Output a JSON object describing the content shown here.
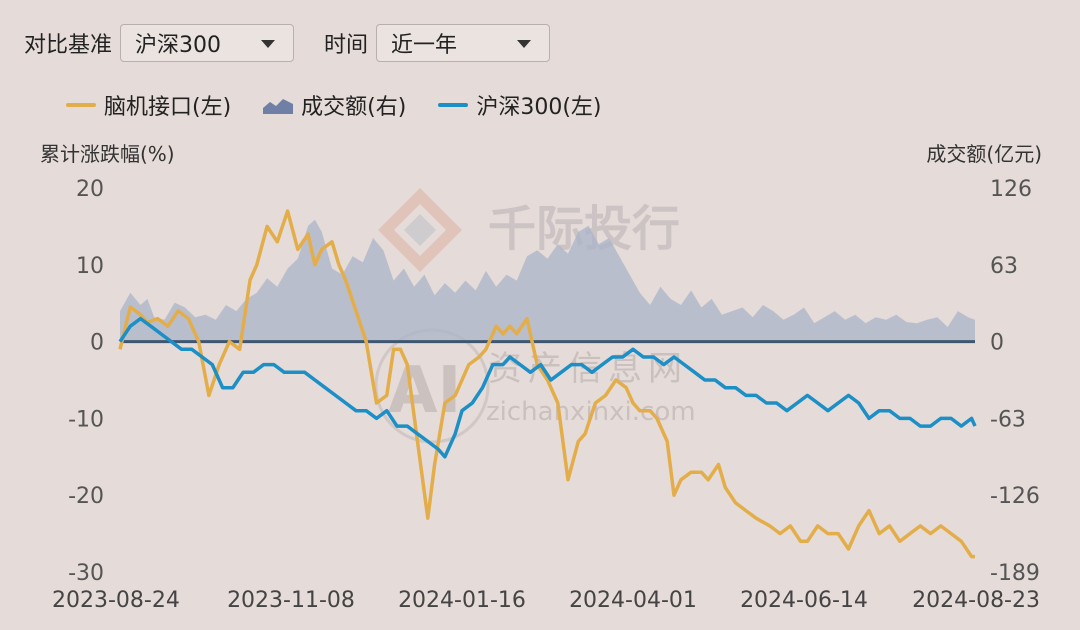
{
  "controls": {
    "base_label": "对比基准",
    "base_value": "沪深300",
    "time_label": "时间",
    "time_value": "近一年"
  },
  "watermark": {
    "brand": "千际投行",
    "site_cn": "资产信息网",
    "site_en": "zichanxinxi.com",
    "ai": "AI"
  },
  "colors": {
    "brain": "#e3ae4a",
    "hs300": "#1b8fc6",
    "volume": "#a9b4c9",
    "background": "#e5dbd8"
  },
  "chart_data": {
    "type": "line",
    "left_axis_title": "累计涨跌幅(%)",
    "right_axis_title": "成交额(亿元)",
    "y_left_ticks": [
      "20",
      "10",
      "0",
      "-10",
      "-20",
      "-30"
    ],
    "y_left_lim": [
      -30,
      20
    ],
    "y_right_ticks": [
      "126",
      "63",
      "0",
      "-63",
      "-126",
      "-189"
    ],
    "y_right_lim": [
      -189,
      126
    ],
    "x_ticks": [
      "2023-08-24",
      "2023-11-08",
      "2024-01-16",
      "2024-04-01",
      "2024-06-14",
      "2024-08-23"
    ],
    "x_index": [
      0,
      50,
      100,
      150,
      200,
      250
    ],
    "legend": [
      "脑机接口(左)",
      "成交额(右)",
      "沪深300(左)"
    ],
    "series": [
      {
        "name": "脑机接口(左)",
        "axis": "left",
        "kind": "line",
        "x": [
          0,
          3,
          6,
          8,
          11,
          14,
          17,
          20,
          23,
          26,
          29,
          32,
          35,
          38,
          40,
          43,
          46,
          49,
          52,
          55,
          57,
          59,
          62,
          64,
          66,
          69,
          72,
          75,
          78,
          80,
          82,
          84,
          87,
          90,
          92,
          95,
          98,
          100,
          102,
          105,
          107,
          110,
          112,
          114,
          116,
          119,
          122,
          125,
          128,
          131,
          134,
          136,
          139,
          142,
          145,
          148,
          150,
          152,
          155,
          157,
          160,
          162,
          164,
          167,
          170,
          172,
          175,
          177,
          180,
          183,
          186,
          190,
          193,
          196,
          199,
          201,
          204,
          207,
          210,
          213,
          216,
          219,
          222,
          225,
          228,
          231,
          234,
          237,
          240,
          243,
          246,
          249,
          250
        ],
        "y": [
          -1,
          4.5,
          3.5,
          2.5,
          3,
          2,
          4,
          3,
          0,
          -7,
          -3,
          0,
          -1,
          8,
          10,
          15,
          13,
          17,
          12,
          14,
          10,
          12,
          13,
          10,
          8,
          4,
          0,
          -8,
          -7,
          -1,
          -1,
          -3,
          -13,
          -23,
          -16,
          -8,
          -7,
          -5,
          -3,
          -2,
          -1,
          2,
          1,
          2,
          1,
          3,
          -3,
          -5,
          -8,
          -18,
          -13,
          -12,
          -8,
          -7,
          -5,
          -6,
          -8,
          -9,
          -9,
          -10,
          -13,
          -20,
          -18,
          -17,
          -17,
          -18,
          -16,
          -19,
          -21,
          -22,
          -23,
          -24,
          -25,
          -24,
          -26,
          -26,
          -24,
          -25,
          -25,
          -27,
          -24,
          -22,
          -25,
          -24,
          -26,
          -25,
          -24,
          -25,
          -24,
          -25,
          -26,
          -28,
          -28
        ]
      },
      {
        "name": "沪深300(左)",
        "axis": "left",
        "kind": "line",
        "x": [
          0,
          3,
          6,
          9,
          12,
          15,
          18,
          21,
          24,
          27,
          30,
          33,
          36,
          39,
          42,
          45,
          48,
          51,
          54,
          57,
          60,
          63,
          66,
          69,
          72,
          75,
          78,
          81,
          84,
          87,
          90,
          93,
          95,
          98,
          100,
          103,
          106,
          109,
          112,
          114,
          117,
          120,
          123,
          126,
          129,
          132,
          135,
          138,
          141,
          144,
          147,
          150,
          153,
          156,
          159,
          162,
          165,
          168,
          171,
          174,
          177,
          180,
          183,
          186,
          189,
          192,
          195,
          198,
          201,
          204,
          207,
          210,
          213,
          216,
          219,
          222,
          225,
          228,
          231,
          234,
          237,
          240,
          243,
          246,
          249,
          250
        ],
        "y": [
          0,
          2,
          3,
          2,
          1,
          0,
          -1,
          -1,
          -2,
          -3,
          -6,
          -6,
          -4,
          -4,
          -3,
          -3,
          -4,
          -4,
          -4,
          -5,
          -6,
          -7,
          -8,
          -9,
          -9,
          -10,
          -9,
          -11,
          -11,
          -12,
          -13,
          -14,
          -15,
          -12,
          -9,
          -8,
          -6,
          -3,
          -3,
          -2,
          -3,
          -4,
          -3,
          -5,
          -4,
          -3,
          -3,
          -4,
          -3,
          -2,
          -2,
          -1,
          -2,
          -2,
          -3,
          -2,
          -3,
          -4,
          -5,
          -5,
          -6,
          -6,
          -7,
          -7,
          -8,
          -8,
          -9,
          -8,
          -7,
          -8,
          -9,
          -8,
          -7,
          -8,
          -10,
          -9,
          -9,
          -10,
          -10,
          -11,
          -11,
          -10,
          -10,
          -11,
          -10,
          -11
        ]
      },
      {
        "name": "成交额(右)",
        "axis": "right",
        "kind": "area",
        "x": [
          0,
          3,
          6,
          8,
          10,
          13,
          16,
          19,
          22,
          25,
          28,
          31,
          34,
          37,
          40,
          43,
          46,
          49,
          52,
          55,
          57,
          59,
          62,
          65,
          68,
          71,
          74,
          77,
          80,
          83,
          86,
          89,
          92,
          95,
          98,
          101,
          104,
          107,
          110,
          113,
          116,
          119,
          122,
          125,
          128,
          131,
          134,
          137,
          140,
          143,
          146,
          149,
          152,
          155,
          158,
          161,
          164,
          167,
          170,
          173,
          176,
          179,
          182,
          185,
          188,
          191,
          194,
          197,
          200,
          203,
          206,
          209,
          212,
          215,
          218,
          221,
          224,
          227,
          230,
          233,
          236,
          239,
          242,
          245,
          248,
          250
        ],
        "y": [
          25,
          40,
          30,
          35,
          20,
          18,
          32,
          28,
          20,
          22,
          18,
          30,
          25,
          35,
          40,
          52,
          45,
          60,
          68,
          95,
          100,
          90,
          60,
          55,
          70,
          65,
          85,
          75,
          50,
          60,
          45,
          55,
          38,
          48,
          40,
          50,
          42,
          58,
          45,
          55,
          50,
          70,
          75,
          68,
          80,
          72,
          90,
          95,
          80,
          85,
          70,
          55,
          40,
          30,
          45,
          35,
          30,
          42,
          28,
          35,
          22,
          25,
          28,
          20,
          30,
          25,
          18,
          22,
          28,
          15,
          20,
          25,
          18,
          22,
          15,
          20,
          18,
          22,
          16,
          15,
          18,
          20,
          12,
          25,
          20,
          18
        ]
      }
    ]
  }
}
